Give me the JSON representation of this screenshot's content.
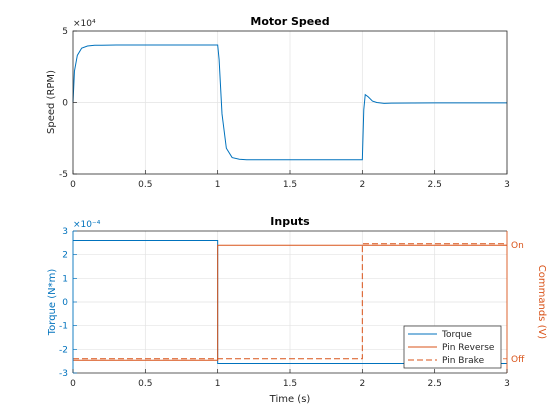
{
  "chart_data": [
    {
      "type": "line",
      "title": "Motor Speed",
      "xlabel": "",
      "ylabel": "Speed (RPM)",
      "y_exponent_label": "×10⁴",
      "xlim": [
        0,
        3
      ],
      "ylim": [
        -50000,
        50000
      ],
      "xticks": [
        0,
        0.5,
        1,
        1.5,
        2,
        2.5,
        3
      ],
      "xtick_labels": [
        "0",
        "0.5",
        "1",
        "1.5",
        "2",
        "2.5",
        "3"
      ],
      "yticks": [
        -50000,
        0,
        50000
      ],
      "ytick_labels": [
        "-5",
        "0",
        "5"
      ],
      "grid": true,
      "series": [
        {
          "color": "#0072BD",
          "x": [
            0,
            0.01,
            0.03,
            0.06,
            0.1,
            0.15,
            0.2,
            0.3,
            0.5,
            0.8,
            1.0,
            1.01,
            1.03,
            1.06,
            1.1,
            1.15,
            1.2,
            1.3,
            1.6,
            2.0,
            2.01,
            2.02,
            2.04,
            2.07,
            2.1,
            2.15,
            2.2,
            2.5,
            3.0
          ],
          "y": [
            0,
            22000,
            33000,
            38000,
            39500,
            40000,
            40000,
            40200,
            40200,
            40200,
            40200,
            30000,
            -8000,
            -32000,
            -38500,
            -39700,
            -40000,
            -40000,
            -40000,
            -40000,
            -5000,
            5500,
            4000,
            1000,
            0,
            -600,
            -400,
            -300,
            -300
          ]
        }
      ]
    },
    {
      "type": "line",
      "title": "Inputs",
      "xlabel": "Time (s)",
      "ylabel": "Torque (N*m)",
      "y_exponent_label": "×10⁻⁴",
      "ylabel_right": "Commands (V)",
      "xlim": [
        0,
        3
      ],
      "ylim": [
        -0.0003,
        0.0003
      ],
      "xticks": [
        0,
        0.5,
        1,
        1.5,
        2,
        2.5,
        3
      ],
      "xtick_labels": [
        "0",
        "0.5",
        "1",
        "1.5",
        "2",
        "2.5",
        "3"
      ],
      "yticks": [
        -0.0003,
        -0.0002,
        -0.0001,
        0,
        0.0001,
        0.0002,
        0.0003
      ],
      "ytick_labels": [
        "-3",
        "-2",
        "-1",
        "0",
        "1",
        "2",
        "3"
      ],
      "ylim_right": [
        0,
        1
      ],
      "yticks_right": [
        0.1,
        0.9
      ],
      "ytick_labels_right": [
        "Off",
        "On"
      ],
      "grid": true,
      "legend_position": "bottom-right",
      "series": [
        {
          "name": "Torque",
          "axis": "left",
          "color": "#0072BD",
          "dash": false,
          "x": [
            0,
            1,
            1,
            3
          ],
          "y": [
            0.00026,
            0.00026,
            -0.00026,
            -0.00026
          ]
        },
        {
          "name": "Pin Reverse",
          "axis": "right",
          "color": "#D95319",
          "dash": false,
          "x": [
            0,
            1,
            1,
            3
          ],
          "y": [
            0.09,
            0.09,
            0.9,
            0.9
          ]
        },
        {
          "name": "Pin Brake",
          "axis": "right",
          "color": "#D95319",
          "dash": true,
          "x": [
            0,
            2,
            2,
            3
          ],
          "y": [
            0.1,
            0.1,
            0.91,
            0.91
          ]
        }
      ]
    }
  ]
}
